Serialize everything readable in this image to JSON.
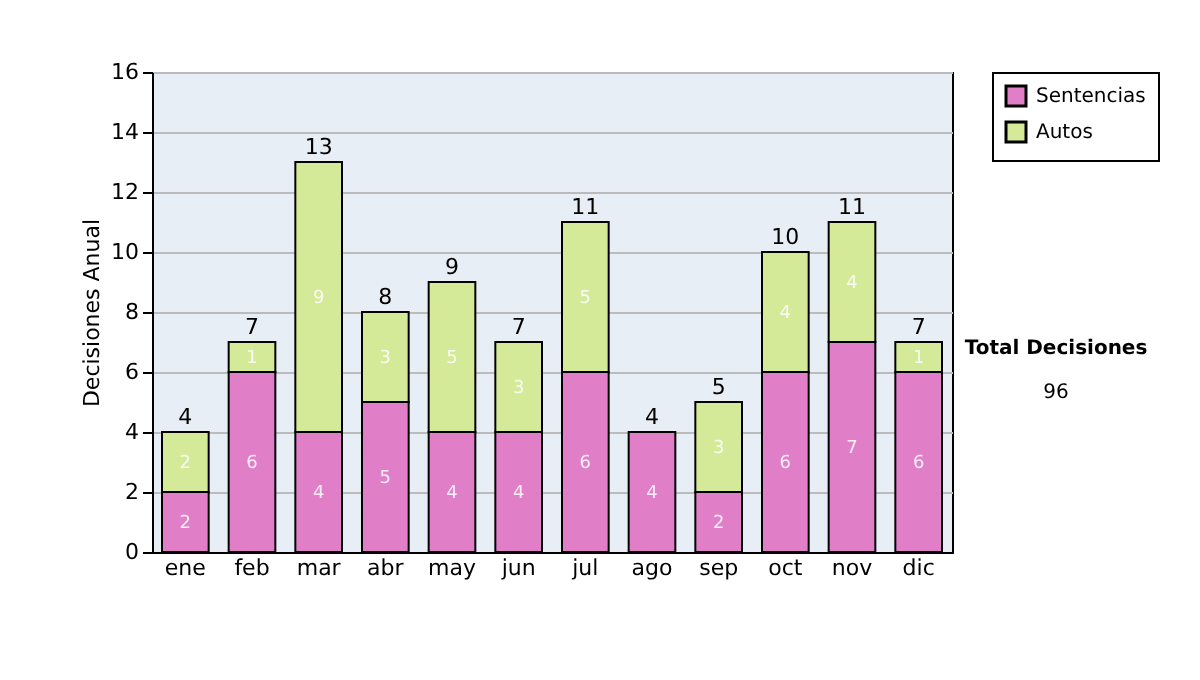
{
  "chart_data": {
    "type": "bar",
    "stacked": true,
    "ylabel": "Decisiones Anual",
    "categories": [
      "ene",
      "feb",
      "mar",
      "abr",
      "may",
      "jun",
      "jul",
      "ago",
      "sep",
      "oct",
      "nov",
      "dic"
    ],
    "series": [
      {
        "name": "Sentencias",
        "color": "#e07fc8",
        "values": [
          2,
          6,
          4,
          5,
          4,
          4,
          6,
          4,
          2,
          6,
          7,
          6
        ]
      },
      {
        "name": "Autos",
        "color": "#d4ea98",
        "values": [
          2,
          1,
          9,
          3,
          5,
          3,
          5,
          null,
          3,
          4,
          4,
          1
        ]
      }
    ],
    "totals": [
      "4",
      "7",
      "13",
      "8",
      "9",
      "7",
      "11",
      "4",
      "5",
      "10",
      "11",
      "7"
    ],
    "data_labels": true,
    "ylim": [
      0,
      16
    ],
    "yticks": [
      0,
      2,
      4,
      6,
      8,
      10,
      12,
      14,
      16
    ],
    "grid": "y",
    "legend": "right",
    "annotations": [
      "Total Decisiones",
      "96"
    ]
  }
}
